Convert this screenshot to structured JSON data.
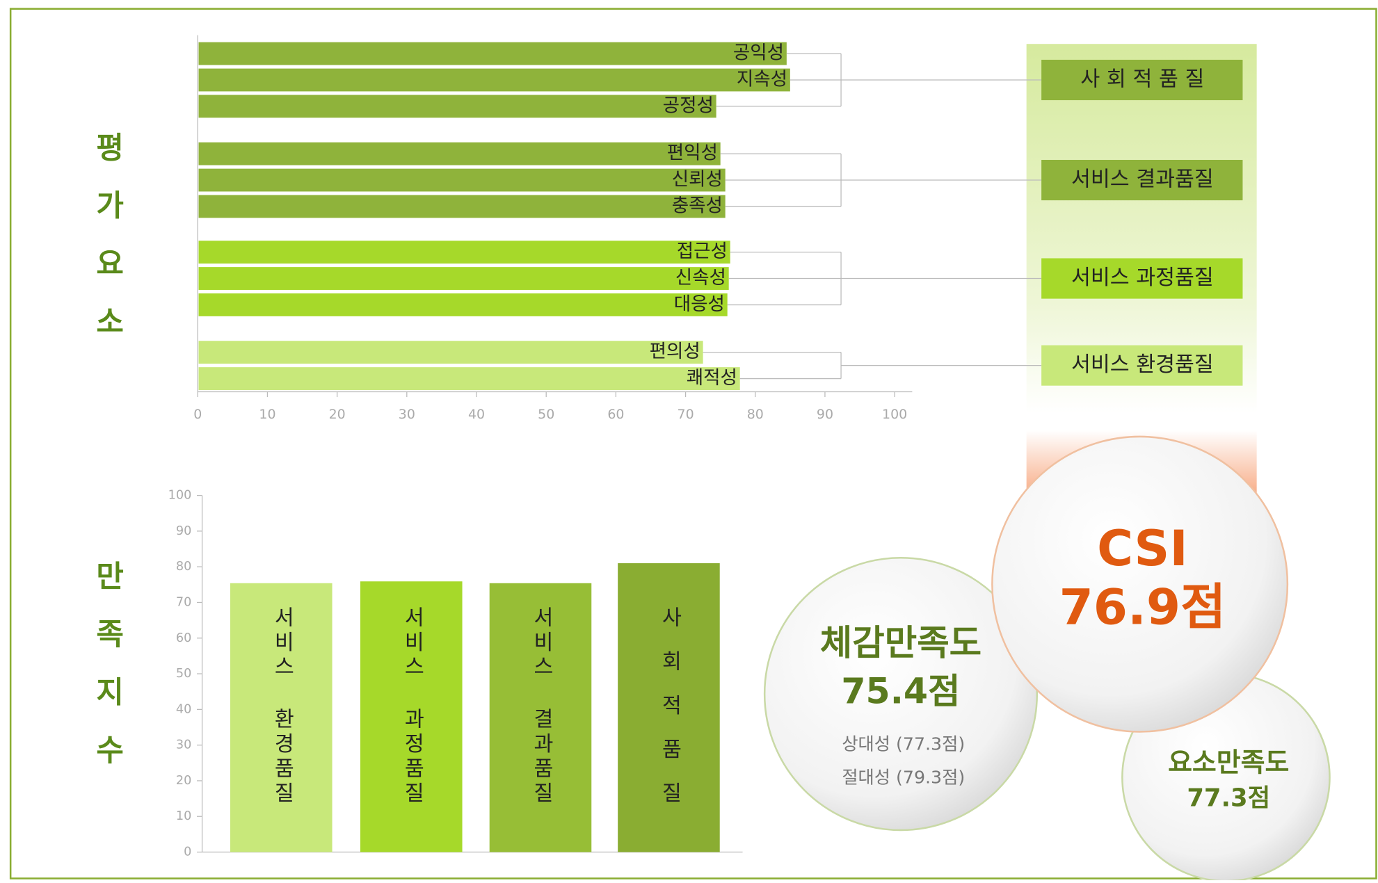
{
  "chart_data": [
    {
      "type": "bar",
      "orientation": "horizontal",
      "ylabel": "평가요소",
      "categories": [
        "공익성",
        "지속성",
        "공정성",
        "편익성",
        "신뢰성",
        "충족성",
        "접근성",
        "신속성",
        "대응성",
        "편의성",
        "쾌적성"
      ],
      "values": [
        84.5,
        85,
        74.4,
        75,
        75.7,
        75.7,
        76.4,
        76.2,
        76,
        72.5,
        77.8
      ],
      "colors": [
        "#8fb33b",
        "#8fb33b",
        "#8fb33b",
        "#8fb33b",
        "#8fb33b",
        "#8fb33b",
        "#a6d92a",
        "#a6d92a",
        "#a6d92a",
        "#c8e87a",
        "#c8e87a"
      ],
      "xlim": [
        0,
        100
      ],
      "xticks": [
        0,
        10,
        20,
        30,
        40,
        50,
        60,
        70,
        80,
        90,
        100
      ]
    },
    {
      "type": "bar",
      "orientation": "vertical",
      "ylabel": "만족지수",
      "categories": [
        "서비스 환경품질",
        "서비스 과정품질",
        "서비스 결과품질",
        "사회적품질"
      ],
      "values": [
        75.4,
        75.9,
        75.4,
        81
      ],
      "colors": [
        "#c8e87a",
        "#a6d92a",
        "#97be36",
        "#8aad32"
      ],
      "ylim": [
        0,
        100
      ],
      "yticks": [
        0,
        10,
        20,
        30,
        40,
        50,
        60,
        70,
        80,
        90,
        100
      ]
    }
  ],
  "groups": [
    "사 회 적 품 질",
    "서비스 결과품질",
    "서비스 과정품질",
    "서비스 환경품질"
  ],
  "summary": {
    "felt": {
      "title": "체감만족도",
      "score": "75.4점",
      "relative": "상대성 (77.3점)",
      "absolute": "절대성 (79.3점)"
    },
    "csi": {
      "title": "CSI",
      "score": "76.9점"
    },
    "element": {
      "title": "요소만족도",
      "score": "77.3점"
    }
  }
}
